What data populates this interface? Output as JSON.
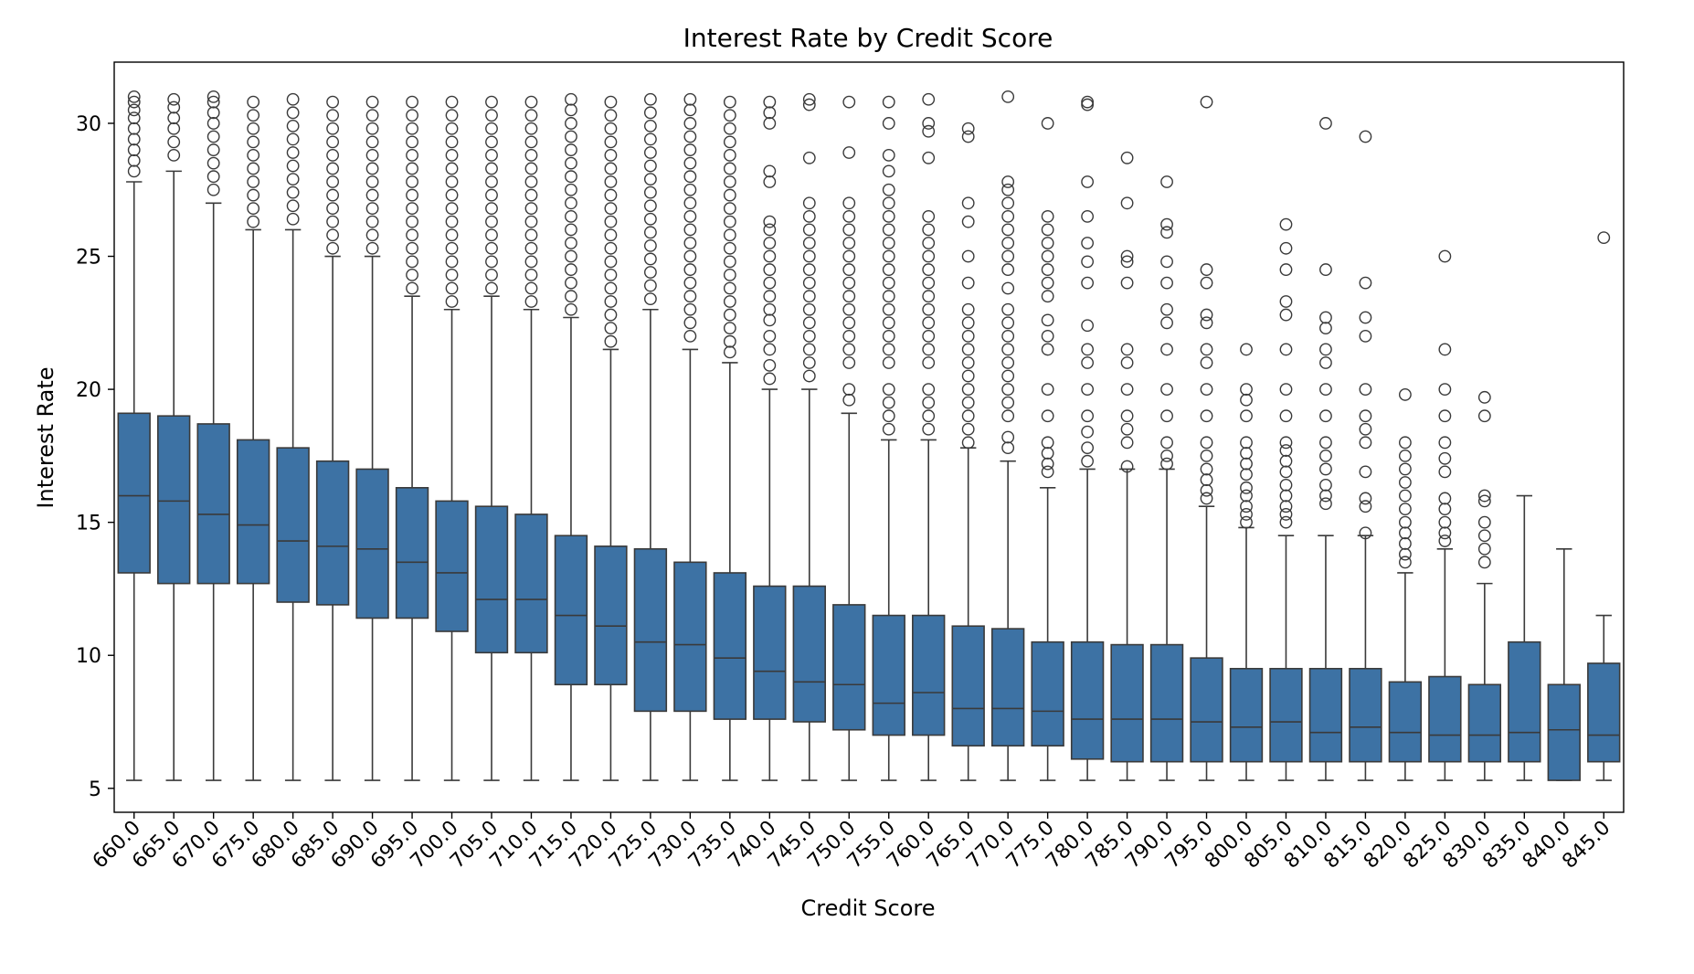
{
  "chart_data": {
    "type": "box",
    "title": "Interest Rate by Credit Score",
    "xlabel": "Credit Score",
    "ylabel": "Interest Rate",
    "ylim": [
      4.1,
      32.3
    ],
    "yticks": [
      5,
      10,
      15,
      20,
      25,
      30
    ],
    "ytick_labels": [
      "5",
      "10",
      "15",
      "20",
      "25",
      "30"
    ],
    "grid": false,
    "colors": {
      "box": "#3d72a4",
      "line": "#3a3a3a",
      "axis": "#000000"
    },
    "categories": [
      "660.0",
      "665.0",
      "670.0",
      "675.0",
      "680.0",
      "685.0",
      "690.0",
      "695.0",
      "700.0",
      "705.0",
      "710.0",
      "715.0",
      "720.0",
      "725.0",
      "730.0",
      "735.0",
      "740.0",
      "745.0",
      "750.0",
      "755.0",
      "760.0",
      "765.0",
      "770.0",
      "775.0",
      "780.0",
      "785.0",
      "790.0",
      "795.0",
      "800.0",
      "805.0",
      "810.0",
      "815.0",
      "820.0",
      "825.0",
      "830.0",
      "835.0",
      "840.0",
      "845.0"
    ],
    "boxes": [
      {
        "whislo": 5.3,
        "q1": 13.1,
        "med": 16.0,
        "q3": 19.1,
        "whishi": 27.8,
        "fliers": [
          28.2,
          28.6,
          29.0,
          29.4,
          29.8,
          30.2,
          30.5,
          30.8,
          31.0
        ]
      },
      {
        "whislo": 5.3,
        "q1": 12.7,
        "med": 15.8,
        "q3": 19.0,
        "whishi": 28.2,
        "fliers": [
          28.8,
          29.3,
          29.8,
          30.2,
          30.6,
          30.9
        ]
      },
      {
        "whislo": 5.3,
        "q1": 12.7,
        "med": 15.3,
        "q3": 18.7,
        "whishi": 27.0,
        "fliers": [
          27.5,
          28.0,
          28.5,
          29.0,
          29.5,
          30.0,
          30.4,
          30.8,
          31.0
        ]
      },
      {
        "whislo": 5.3,
        "q1": 12.7,
        "med": 14.9,
        "q3": 18.1,
        "whishi": 26.0,
        "fliers": [
          26.3,
          26.8,
          27.3,
          27.8,
          28.3,
          28.8,
          29.3,
          29.8,
          30.3,
          30.8
        ]
      },
      {
        "whislo": 5.3,
        "q1": 12.0,
        "med": 14.3,
        "q3": 17.8,
        "whishi": 26.0,
        "fliers": [
          26.4,
          26.9,
          27.4,
          27.9,
          28.4,
          28.9,
          29.4,
          29.9,
          30.4,
          30.9
        ]
      },
      {
        "whislo": 5.3,
        "q1": 11.9,
        "med": 14.1,
        "q3": 17.3,
        "whishi": 25.0,
        "fliers": [
          25.3,
          25.8,
          26.3,
          26.8,
          27.3,
          27.8,
          28.3,
          28.8,
          29.3,
          29.8,
          30.3,
          30.8
        ]
      },
      {
        "whislo": 5.3,
        "q1": 11.4,
        "med": 14.0,
        "q3": 17.0,
        "whishi": 25.0,
        "fliers": [
          25.3,
          25.8,
          26.3,
          26.8,
          27.3,
          27.8,
          28.3,
          28.8,
          29.3,
          29.8,
          30.3,
          30.8
        ]
      },
      {
        "whislo": 5.3,
        "q1": 11.4,
        "med": 13.5,
        "q3": 16.3,
        "whishi": 23.5,
        "fliers": [
          23.8,
          24.3,
          24.8,
          25.3,
          25.8,
          26.3,
          26.8,
          27.3,
          27.8,
          28.3,
          28.8,
          29.3,
          29.8,
          30.3,
          30.8
        ]
      },
      {
        "whislo": 5.3,
        "q1": 10.9,
        "med": 13.1,
        "q3": 15.8,
        "whishi": 23.0,
        "fliers": [
          23.3,
          23.8,
          24.3,
          24.8,
          25.3,
          25.8,
          26.3,
          26.8,
          27.3,
          27.8,
          28.3,
          28.8,
          29.3,
          29.8,
          30.3,
          30.8
        ]
      },
      {
        "whislo": 5.3,
        "q1": 10.1,
        "med": 12.1,
        "q3": 15.6,
        "whishi": 23.5,
        "fliers": [
          23.8,
          24.3,
          24.8,
          25.3,
          25.8,
          26.3,
          26.8,
          27.3,
          27.8,
          28.3,
          28.8,
          29.3,
          29.8,
          30.3,
          30.8
        ]
      },
      {
        "whislo": 5.3,
        "q1": 10.1,
        "med": 12.1,
        "q3": 15.3,
        "whishi": 23.0,
        "fliers": [
          23.3,
          23.8,
          24.3,
          24.8,
          25.3,
          25.8,
          26.3,
          26.8,
          27.3,
          27.8,
          28.3,
          28.8,
          29.3,
          29.8,
          30.3,
          30.8
        ]
      },
      {
        "whislo": 5.3,
        "q1": 8.9,
        "med": 11.5,
        "q3": 14.5,
        "whishi": 22.7,
        "fliers": [
          23.0,
          23.5,
          24.0,
          24.5,
          25.0,
          25.5,
          26.0,
          26.5,
          27.0,
          27.5,
          28.0,
          28.5,
          29.0,
          29.5,
          30.0,
          30.5,
          30.9
        ]
      },
      {
        "whislo": 5.3,
        "q1": 8.9,
        "med": 11.1,
        "q3": 14.1,
        "whishi": 21.5,
        "fliers": [
          21.8,
          22.3,
          22.8,
          23.3,
          23.8,
          24.3,
          24.8,
          25.3,
          25.8,
          26.3,
          26.8,
          27.3,
          27.8,
          28.3,
          28.8,
          29.3,
          29.8,
          30.3,
          30.8
        ]
      },
      {
        "whislo": 5.3,
        "q1": 7.9,
        "med": 10.5,
        "q3": 14.0,
        "whishi": 23.0,
        "fliers": [
          23.4,
          23.9,
          24.4,
          24.9,
          25.4,
          25.9,
          26.4,
          26.9,
          27.4,
          27.9,
          28.4,
          28.9,
          29.4,
          29.9,
          30.4,
          30.9
        ]
      },
      {
        "whislo": 5.3,
        "q1": 7.9,
        "med": 10.4,
        "q3": 13.5,
        "whishi": 21.5,
        "fliers": [
          22.0,
          22.5,
          23.0,
          23.5,
          24.0,
          24.5,
          25.0,
          25.5,
          26.0,
          26.5,
          27.0,
          27.5,
          28.0,
          28.5,
          29.0,
          29.5,
          30.0,
          30.5,
          30.9
        ]
      },
      {
        "whislo": 5.3,
        "q1": 7.6,
        "med": 9.9,
        "q3": 13.1,
        "whishi": 21.0,
        "fliers": [
          21.4,
          21.8,
          22.3,
          22.8,
          23.3,
          23.8,
          24.3,
          24.8,
          25.3,
          25.8,
          26.3,
          26.8,
          27.3,
          27.8,
          28.3,
          28.8,
          29.3,
          29.8,
          30.3,
          30.8
        ]
      },
      {
        "whislo": 5.3,
        "q1": 7.6,
        "med": 9.4,
        "q3": 12.6,
        "whishi": 20.0,
        "fliers": [
          20.4,
          20.9,
          21.5,
          22.0,
          22.6,
          23.0,
          23.5,
          24.0,
          24.5,
          25.0,
          25.5,
          26.0,
          26.3,
          27.8,
          28.2,
          30.0,
          30.4,
          30.8
        ]
      },
      {
        "whislo": 5.3,
        "q1": 7.5,
        "med": 9.0,
        "q3": 12.6,
        "whishi": 20.0,
        "fliers": [
          20.5,
          21.0,
          21.5,
          22.0,
          22.5,
          23.0,
          23.5,
          24.0,
          24.5,
          25.0,
          25.5,
          26.0,
          26.5,
          27.0,
          28.7,
          30.7,
          30.9
        ]
      },
      {
        "whislo": 5.3,
        "q1": 7.2,
        "med": 8.9,
        "q3": 11.9,
        "whishi": 19.1,
        "fliers": [
          19.6,
          20.0,
          21.0,
          21.5,
          22.0,
          22.5,
          23.0,
          23.5,
          24.0,
          24.5,
          25.0,
          25.5,
          26.0,
          26.5,
          27.0,
          28.9,
          30.8
        ]
      },
      {
        "whislo": 5.3,
        "q1": 7.0,
        "med": 8.2,
        "q3": 11.5,
        "whishi": 18.1,
        "fliers": [
          18.5,
          19.0,
          19.5,
          20.0,
          21.0,
          21.5,
          22.0,
          22.5,
          23.0,
          23.5,
          24.0,
          24.5,
          25.0,
          25.5,
          26.0,
          26.5,
          27.0,
          27.5,
          28.2,
          28.8,
          30.0,
          30.8
        ]
      },
      {
        "whislo": 5.3,
        "q1": 7.0,
        "med": 8.6,
        "q3": 11.5,
        "whishi": 18.1,
        "fliers": [
          18.5,
          19.0,
          19.5,
          20.0,
          21.0,
          21.5,
          22.0,
          22.5,
          23.0,
          23.5,
          24.0,
          24.5,
          25.0,
          25.5,
          26.0,
          26.5,
          28.7,
          29.7,
          30.0,
          30.9
        ]
      },
      {
        "whislo": 5.3,
        "q1": 6.6,
        "med": 8.0,
        "q3": 11.1,
        "whishi": 17.8,
        "fliers": [
          18.0,
          18.5,
          19.0,
          19.5,
          20.0,
          20.5,
          21.0,
          21.5,
          22.0,
          22.5,
          23.0,
          24.0,
          25.0,
          26.3,
          27.0,
          29.5,
          29.8
        ]
      },
      {
        "whislo": 5.3,
        "q1": 6.6,
        "med": 8.0,
        "q3": 11.0,
        "whishi": 17.3,
        "fliers": [
          17.8,
          18.2,
          19.0,
          19.5,
          20.0,
          20.5,
          21.0,
          21.5,
          22.0,
          22.5,
          23.0,
          23.8,
          24.5,
          25.0,
          25.5,
          26.0,
          26.5,
          27.0,
          27.5,
          27.8,
          31.0
        ]
      },
      {
        "whislo": 5.3,
        "q1": 6.6,
        "med": 7.9,
        "q3": 10.5,
        "whishi": 16.3,
        "fliers": [
          16.9,
          17.2,
          17.6,
          18.0,
          19.0,
          20.0,
          21.5,
          22.0,
          22.6,
          23.5,
          24.0,
          24.5,
          25.0,
          25.5,
          26.0,
          26.5,
          30.0
        ]
      },
      {
        "whislo": 5.3,
        "q1": 6.1,
        "med": 7.6,
        "q3": 10.5,
        "whishi": 17.0,
        "fliers": [
          17.3,
          17.8,
          18.4,
          19.0,
          20.0,
          21.0,
          21.5,
          22.4,
          24.0,
          24.8,
          25.5,
          26.5,
          27.8,
          30.7,
          30.8
        ]
      },
      {
        "whislo": 5.3,
        "q1": 6.0,
        "med": 7.6,
        "q3": 10.4,
        "whishi": 17.0,
        "fliers": [
          17.1,
          18.0,
          18.5,
          19.0,
          20.0,
          21.0,
          21.5,
          24.0,
          24.8,
          25.0,
          27.0,
          28.7
        ]
      },
      {
        "whislo": 5.3,
        "q1": 6.0,
        "med": 7.6,
        "q3": 10.4,
        "whishi": 17.0,
        "fliers": [
          17.2,
          17.5,
          18.0,
          19.0,
          20.0,
          21.5,
          22.5,
          23.0,
          24.0,
          24.8,
          25.9,
          26.2,
          27.8
        ]
      },
      {
        "whislo": 5.3,
        "q1": 6.0,
        "med": 7.5,
        "q3": 9.9,
        "whishi": 15.6,
        "fliers": [
          15.9,
          16.2,
          16.6,
          17.0,
          17.5,
          18.0,
          19.0,
          20.0,
          21.0,
          21.5,
          22.5,
          22.8,
          24.0,
          24.5,
          30.8
        ]
      },
      {
        "whislo": 5.3,
        "q1": 6.0,
        "med": 7.3,
        "q3": 9.5,
        "whishi": 14.8,
        "fliers": [
          15.0,
          15.3,
          15.6,
          16.0,
          16.3,
          16.8,
          17.2,
          17.6,
          18.0,
          19.0,
          19.6,
          20.0,
          21.5
        ]
      },
      {
        "whislo": 5.3,
        "q1": 6.0,
        "med": 7.5,
        "q3": 9.5,
        "whishi": 14.5,
        "fliers": [
          15.0,
          15.3,
          15.6,
          16.0,
          16.4,
          16.9,
          17.3,
          17.7,
          18.0,
          19.0,
          20.0,
          21.5,
          22.8,
          23.3,
          24.5,
          25.3,
          26.2
        ]
      },
      {
        "whislo": 5.3,
        "q1": 6.0,
        "med": 7.1,
        "q3": 9.5,
        "whishi": 14.5,
        "fliers": [
          15.7,
          16.0,
          16.4,
          17.0,
          17.5,
          18.0,
          19.0,
          20.0,
          21.0,
          21.5,
          22.3,
          22.7,
          24.5,
          30.0
        ]
      },
      {
        "whislo": 5.3,
        "q1": 6.0,
        "med": 7.3,
        "q3": 9.5,
        "whishi": 14.5,
        "fliers": [
          14.6,
          15.6,
          15.9,
          16.9,
          18.0,
          18.5,
          19.0,
          20.0,
          22.0,
          22.7,
          24.0,
          29.5
        ]
      },
      {
        "whislo": 5.3,
        "q1": 6.0,
        "med": 7.1,
        "q3": 9.0,
        "whishi": 13.1,
        "fliers": [
          13.5,
          13.8,
          14.2,
          14.6,
          15.0,
          15.5,
          16.0,
          16.5,
          17.0,
          17.5,
          18.0,
          19.8
        ]
      },
      {
        "whislo": 5.3,
        "q1": 6.0,
        "med": 7.0,
        "q3": 9.2,
        "whishi": 14.0,
        "fliers": [
          14.3,
          14.6,
          15.0,
          15.5,
          15.9,
          16.9,
          17.4,
          18.0,
          19.0,
          20.0,
          21.5,
          25.0
        ]
      },
      {
        "whislo": 5.3,
        "q1": 6.0,
        "med": 7.0,
        "q3": 8.9,
        "whishi": 12.7,
        "fliers": [
          13.5,
          14.0,
          14.5,
          15.0,
          15.8,
          16.0,
          19.0,
          19.7
        ]
      },
      {
        "whislo": 5.3,
        "q1": 6.0,
        "med": 7.1,
        "q3": 10.5,
        "whishi": 16.0,
        "fliers": []
      },
      {
        "whislo": 5.3,
        "q1": 5.3,
        "med": 7.2,
        "q3": 8.9,
        "whishi": 14.0,
        "fliers": []
      },
      {
        "whislo": 5.3,
        "q1": 6.0,
        "med": 7.0,
        "q3": 9.7,
        "whishi": 11.5,
        "fliers": [
          25.7
        ]
      }
    ]
  }
}
